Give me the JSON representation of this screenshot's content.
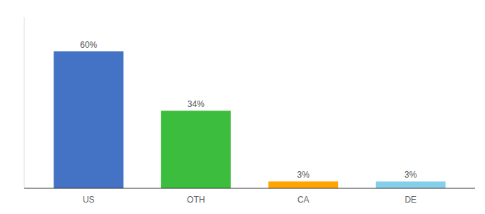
{
  "chart_data": {
    "type": "bar",
    "categories": [
      "US",
      "OTH",
      "CA",
      "DE"
    ],
    "values": [
      60,
      34,
      3,
      3
    ],
    "value_labels": [
      "60%",
      "34%",
      "3%",
      "3%"
    ],
    "colors": [
      "#4472C4",
      "#3DBD3D",
      "#FFA500",
      "#87CEEB"
    ],
    "ylim": [
      0,
      75
    ],
    "tick_labels": "x",
    "data_labels": true,
    "grid": false
  }
}
